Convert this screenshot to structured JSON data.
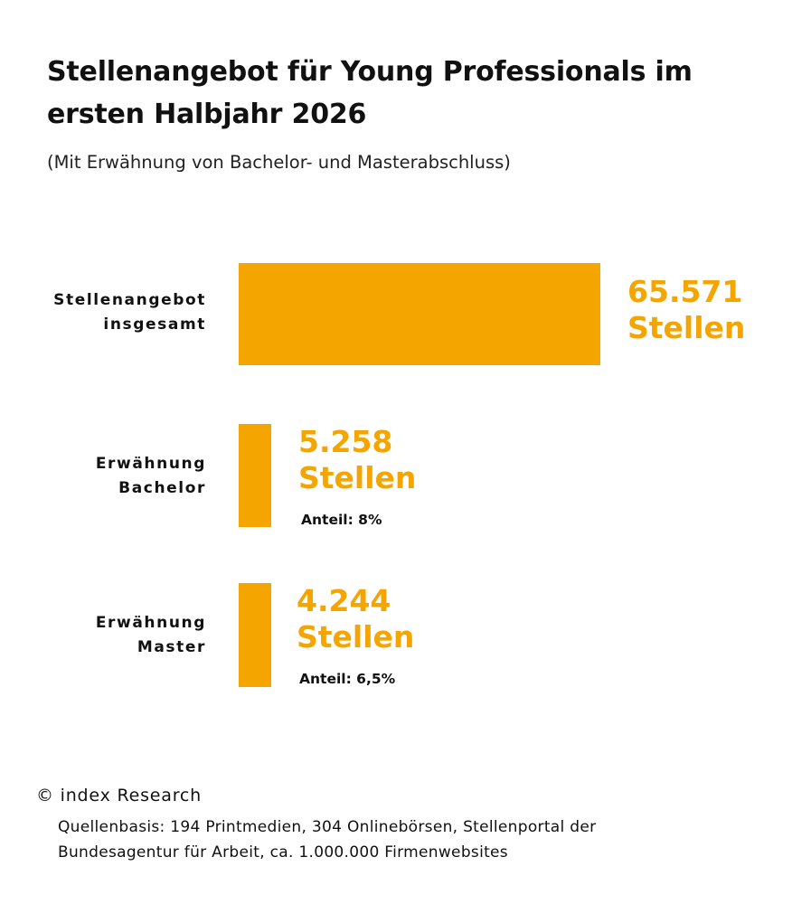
{
  "chart_data": {
    "type": "bar",
    "orientation": "horizontal",
    "title": "Stellenangebot für Young Professionals im ersten Halbjahr 2026",
    "subtitle": "(Mit Erwähnung von Bachelor- und Masterabschluss)",
    "color": "#F5A500",
    "categories": [
      [
        "Stellenangebot",
        "insgesamt"
      ],
      [
        "Erwähnung",
        "Bachelor"
      ],
      [
        "Erwähnung",
        "Master"
      ]
    ],
    "values": [
      65571,
      5258,
      4244
    ],
    "value_labels": [
      "65.571",
      "5.258",
      "4.244"
    ],
    "unit_label": "Stellen",
    "share_labels": [
      "",
      "Anteil: 8%",
      "Anteil: 6,5%"
    ]
  },
  "footer": {
    "copyright": "© index Research",
    "source_lines": [
      "Quellenbasis: 194 Printmedien, 304 Onlinebörsen, Stellenportal der",
      "Bundesagentur für Arbeit, ca. 1.000.000 Firmenwebsites"
    ]
  }
}
